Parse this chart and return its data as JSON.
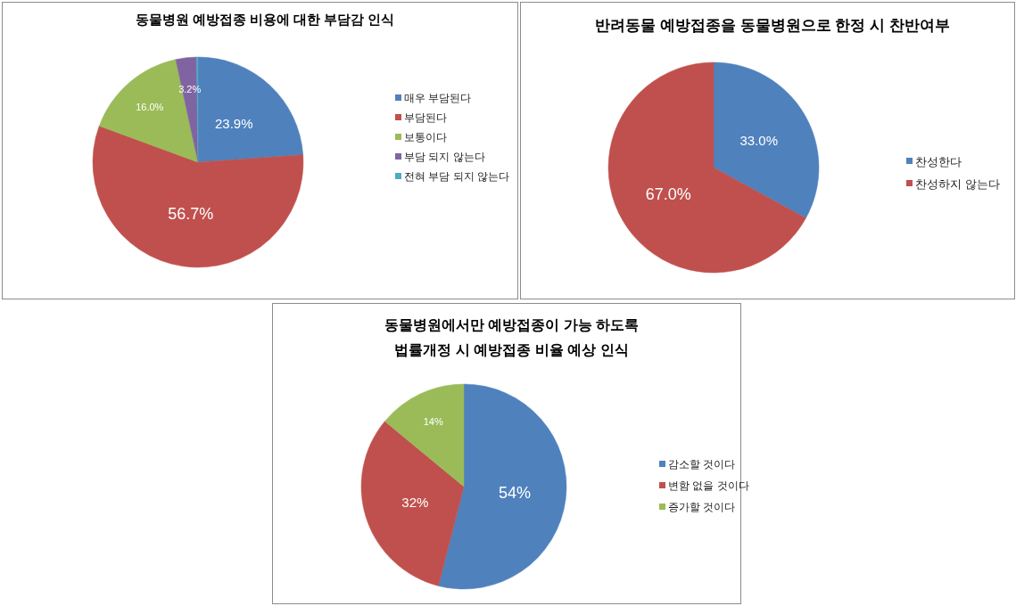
{
  "chart_data": [
    {
      "type": "pie",
      "title": "동물병원 예방접종 비용에 대한 부담감 인식",
      "categories": [
        "매우 부담된다",
        "부담된다",
        "보통이다",
        "부담 되지 않는다",
        "전혀 부담 되지 않는다"
      ],
      "values": [
        23.9,
        56.7,
        16.0,
        3.2,
        0.2
      ],
      "colors": [
        "#4f81bd",
        "#c0504d",
        "#9bbb59",
        "#8064a2",
        "#4bacc6"
      ],
      "value_labels": [
        "23.9%",
        "56.7%",
        "16.0%",
        "3.2%",
        null
      ],
      "legend": "right"
    },
    {
      "type": "pie",
      "title": "반려동물 예방접종을 동물병원으로 한정 시 찬반여부",
      "categories": [
        "찬성한다",
        "찬성하지 않는다"
      ],
      "values": [
        33.0,
        67.0
      ],
      "colors": [
        "#4f81bd",
        "#c0504d"
      ],
      "value_labels": [
        "33.0%",
        "67.0%"
      ],
      "legend": "right"
    },
    {
      "type": "pie",
      "title": "동물병원에서만 예방접종이 가능 하도록\n법률개정 시 예방접종 비율 예상 인식",
      "categories": [
        "감소할 것이다",
        "변함 없을 것이다",
        "증가할 것이다"
      ],
      "values": [
        54,
        32,
        14
      ],
      "colors": [
        "#4f81bd",
        "#c0504d",
        "#9bbb59"
      ],
      "value_labels": [
        "54%",
        "32%",
        "14%"
      ],
      "legend": "right"
    }
  ]
}
